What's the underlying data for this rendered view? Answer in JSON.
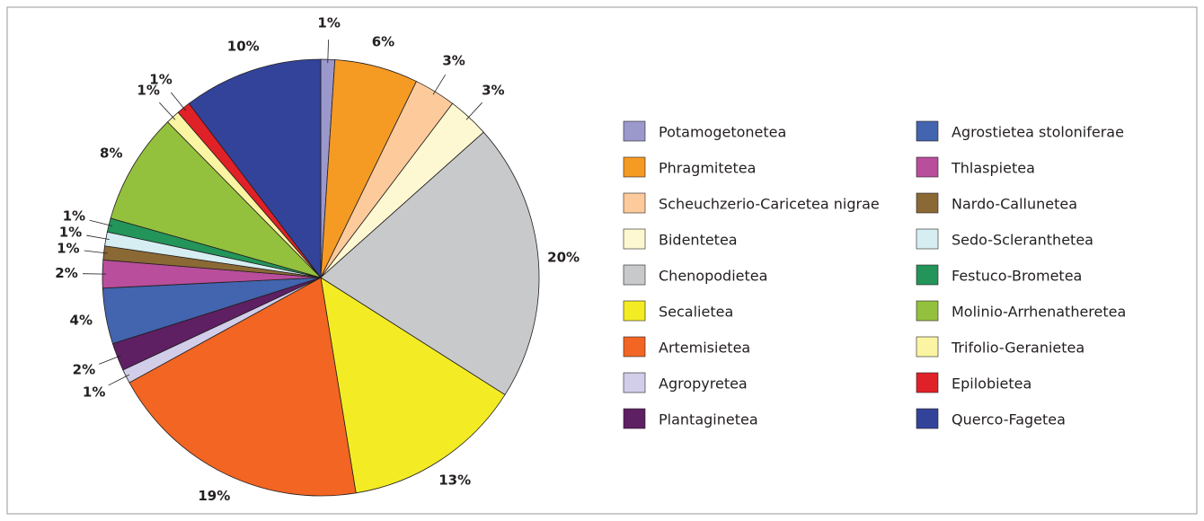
{
  "chart_data": {
    "type": "pie",
    "categories": [
      "Potamogetonetea",
      "Phragmitetea",
      "Scheuchzerio-Caricetea nigrae",
      "Bidentetea",
      "Chenopodietea",
      "Secalietea",
      "Artemisietea",
      "Agropyretea",
      "Plantaginetea",
      "Agrostietea stoloniferae",
      "Thlaspietea",
      "Nardo-Callunetea",
      "Sedo-Scleranthetea",
      "Festuco-Brometea",
      "Molinio-Arrhenatheretea",
      "Trifolio-Geranietea",
      "Epilobietea",
      "Querco-Fagetea"
    ],
    "values": [
      1,
      6,
      3,
      3,
      20,
      13,
      19,
      1,
      2,
      4,
      2,
      1,
      1,
      1,
      8,
      1,
      1,
      10
    ],
    "value_labels": [
      "1%",
      "6%",
      "3%",
      "3%",
      "20%",
      "13%",
      "19%",
      "1%",
      "2%",
      "4%",
      "2%",
      "1%",
      "1%",
      "1%",
      "8%",
      "1%",
      "1%",
      "10%"
    ],
    "colors": [
      "#9b98cc",
      "#f59a23",
      "#fdcb9b",
      "#fdf8d2",
      "#c8c9cb",
      "#f3ec25",
      "#f26522",
      "#d2cde8",
      "#5e1f63",
      "#4364ae",
      "#b94e9c",
      "#8b6935",
      "#d6eef2",
      "#23955a",
      "#94c13d",
      "#fbf4a2",
      "#e02127",
      "#33439a"
    ],
    "legend": "right"
  }
}
